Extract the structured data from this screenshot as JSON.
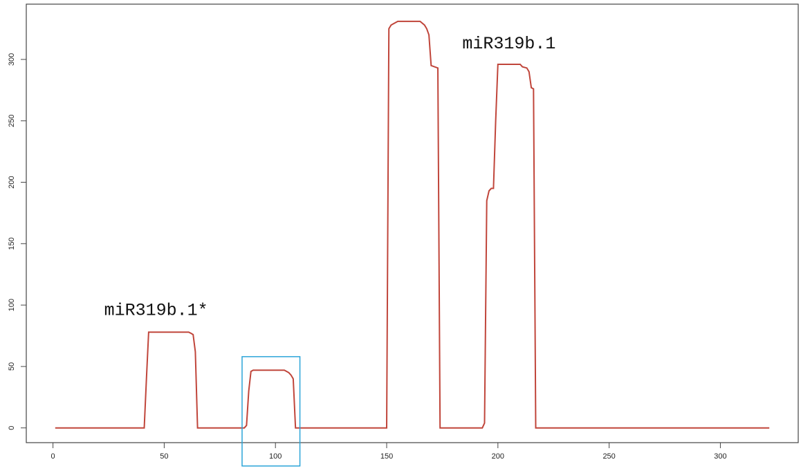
{
  "chart_data": {
    "type": "line",
    "title": "",
    "xlabel": "",
    "ylabel": "",
    "xlim": [
      -12,
      335
    ],
    "ylim": [
      -12,
      345
    ],
    "x_ticks": [
      0,
      50,
      100,
      150,
      200,
      250,
      300
    ],
    "y_ticks": [
      0,
      50,
      100,
      150,
      200,
      250,
      300
    ],
    "grid": false,
    "legend": "none",
    "series": [
      {
        "color": "#c0453a",
        "x": [
          1,
          41,
          42,
          43,
          61,
          62,
          63,
          64,
          65,
          86,
          87,
          88,
          89,
          90,
          104,
          105,
          106,
          107,
          108,
          109,
          150,
          151,
          152,
          153,
          155,
          165,
          167,
          168,
          169,
          170,
          173,
          174,
          193,
          194,
          195,
          196,
          197,
          198,
          199,
          200,
          210,
          211,
          213,
          214,
          215,
          216,
          217,
          322
        ],
        "y": [
          0,
          0,
          40,
          78,
          78,
          77,
          76,
          62,
          0,
          0,
          2,
          30,
          46,
          47,
          47,
          46,
          45,
          43,
          40,
          0,
          0,
          325,
          328,
          329,
          331,
          331,
          328,
          325,
          320,
          295,
          293,
          0,
          0,
          4,
          185,
          193,
          195,
          195,
          250,
          296,
          296,
          294,
          293,
          290,
          277,
          276,
          0,
          0
        ]
      }
    ],
    "annotations": [
      {
        "text": "miR319b.1*",
        "x": 23,
        "y": 92
      },
      {
        "text": "miR319b.1",
        "x": 184,
        "y": 309
      }
    ],
    "highlight_box": {
      "x0": 85,
      "x1": 111,
      "y0": -31,
      "y1": 58,
      "color": "#2aa4d8"
    }
  }
}
